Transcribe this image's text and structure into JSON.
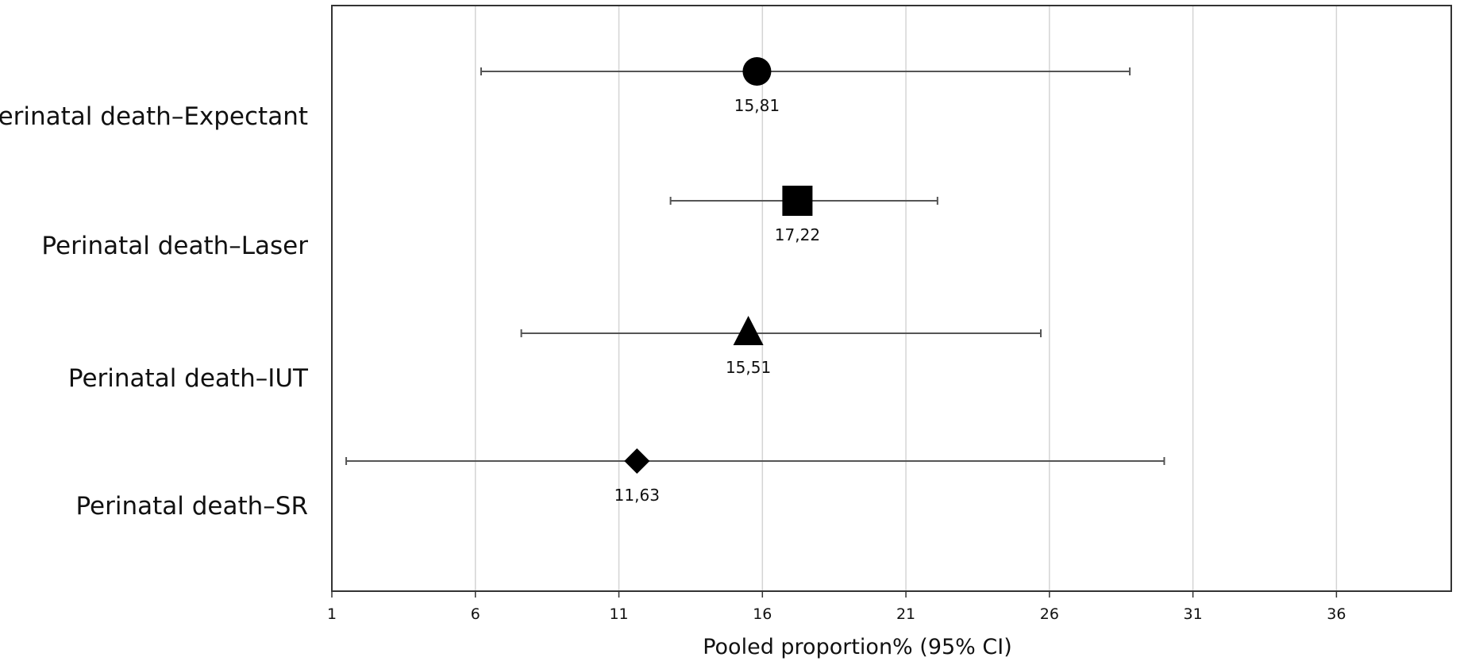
{
  "chart_data": {
    "type": "forest",
    "title": "",
    "xlabel": "Pooled proportion% (95% CI)",
    "ylabel": "",
    "xlim": [
      1,
      40
    ],
    "x_ticks": [
      1,
      6,
      11,
      16,
      21,
      26,
      31,
      36
    ],
    "x_tick_labels": [
      "1",
      "6",
      "11",
      "16",
      "21",
      "26",
      "31",
      "36"
    ],
    "grid": "vertical",
    "legend": "none",
    "categories": [
      "Perinatal death–Expectant",
      "Perinatal death–Laser",
      "Perinatal death–IUT",
      "Perinatal death–SR"
    ],
    "series": [
      {
        "values": [
          15.81,
          17.22,
          15.51,
          11.63
        ],
        "ci_lower": [
          6.2,
          12.8,
          7.6,
          1.5
        ],
        "ci_upper": [
          28.8,
          22.1,
          25.7,
          30.0
        ],
        "value_labels": [
          "15,81",
          "17,22",
          "15,51",
          "11,63"
        ],
        "markers": [
          "circle",
          "square",
          "triangle",
          "diamond"
        ]
      }
    ],
    "colors": {
      "marker": "#000000",
      "whisker": "#555555",
      "grid": "#d4d4d4",
      "frame": "#333333",
      "text": "#111111"
    }
  }
}
